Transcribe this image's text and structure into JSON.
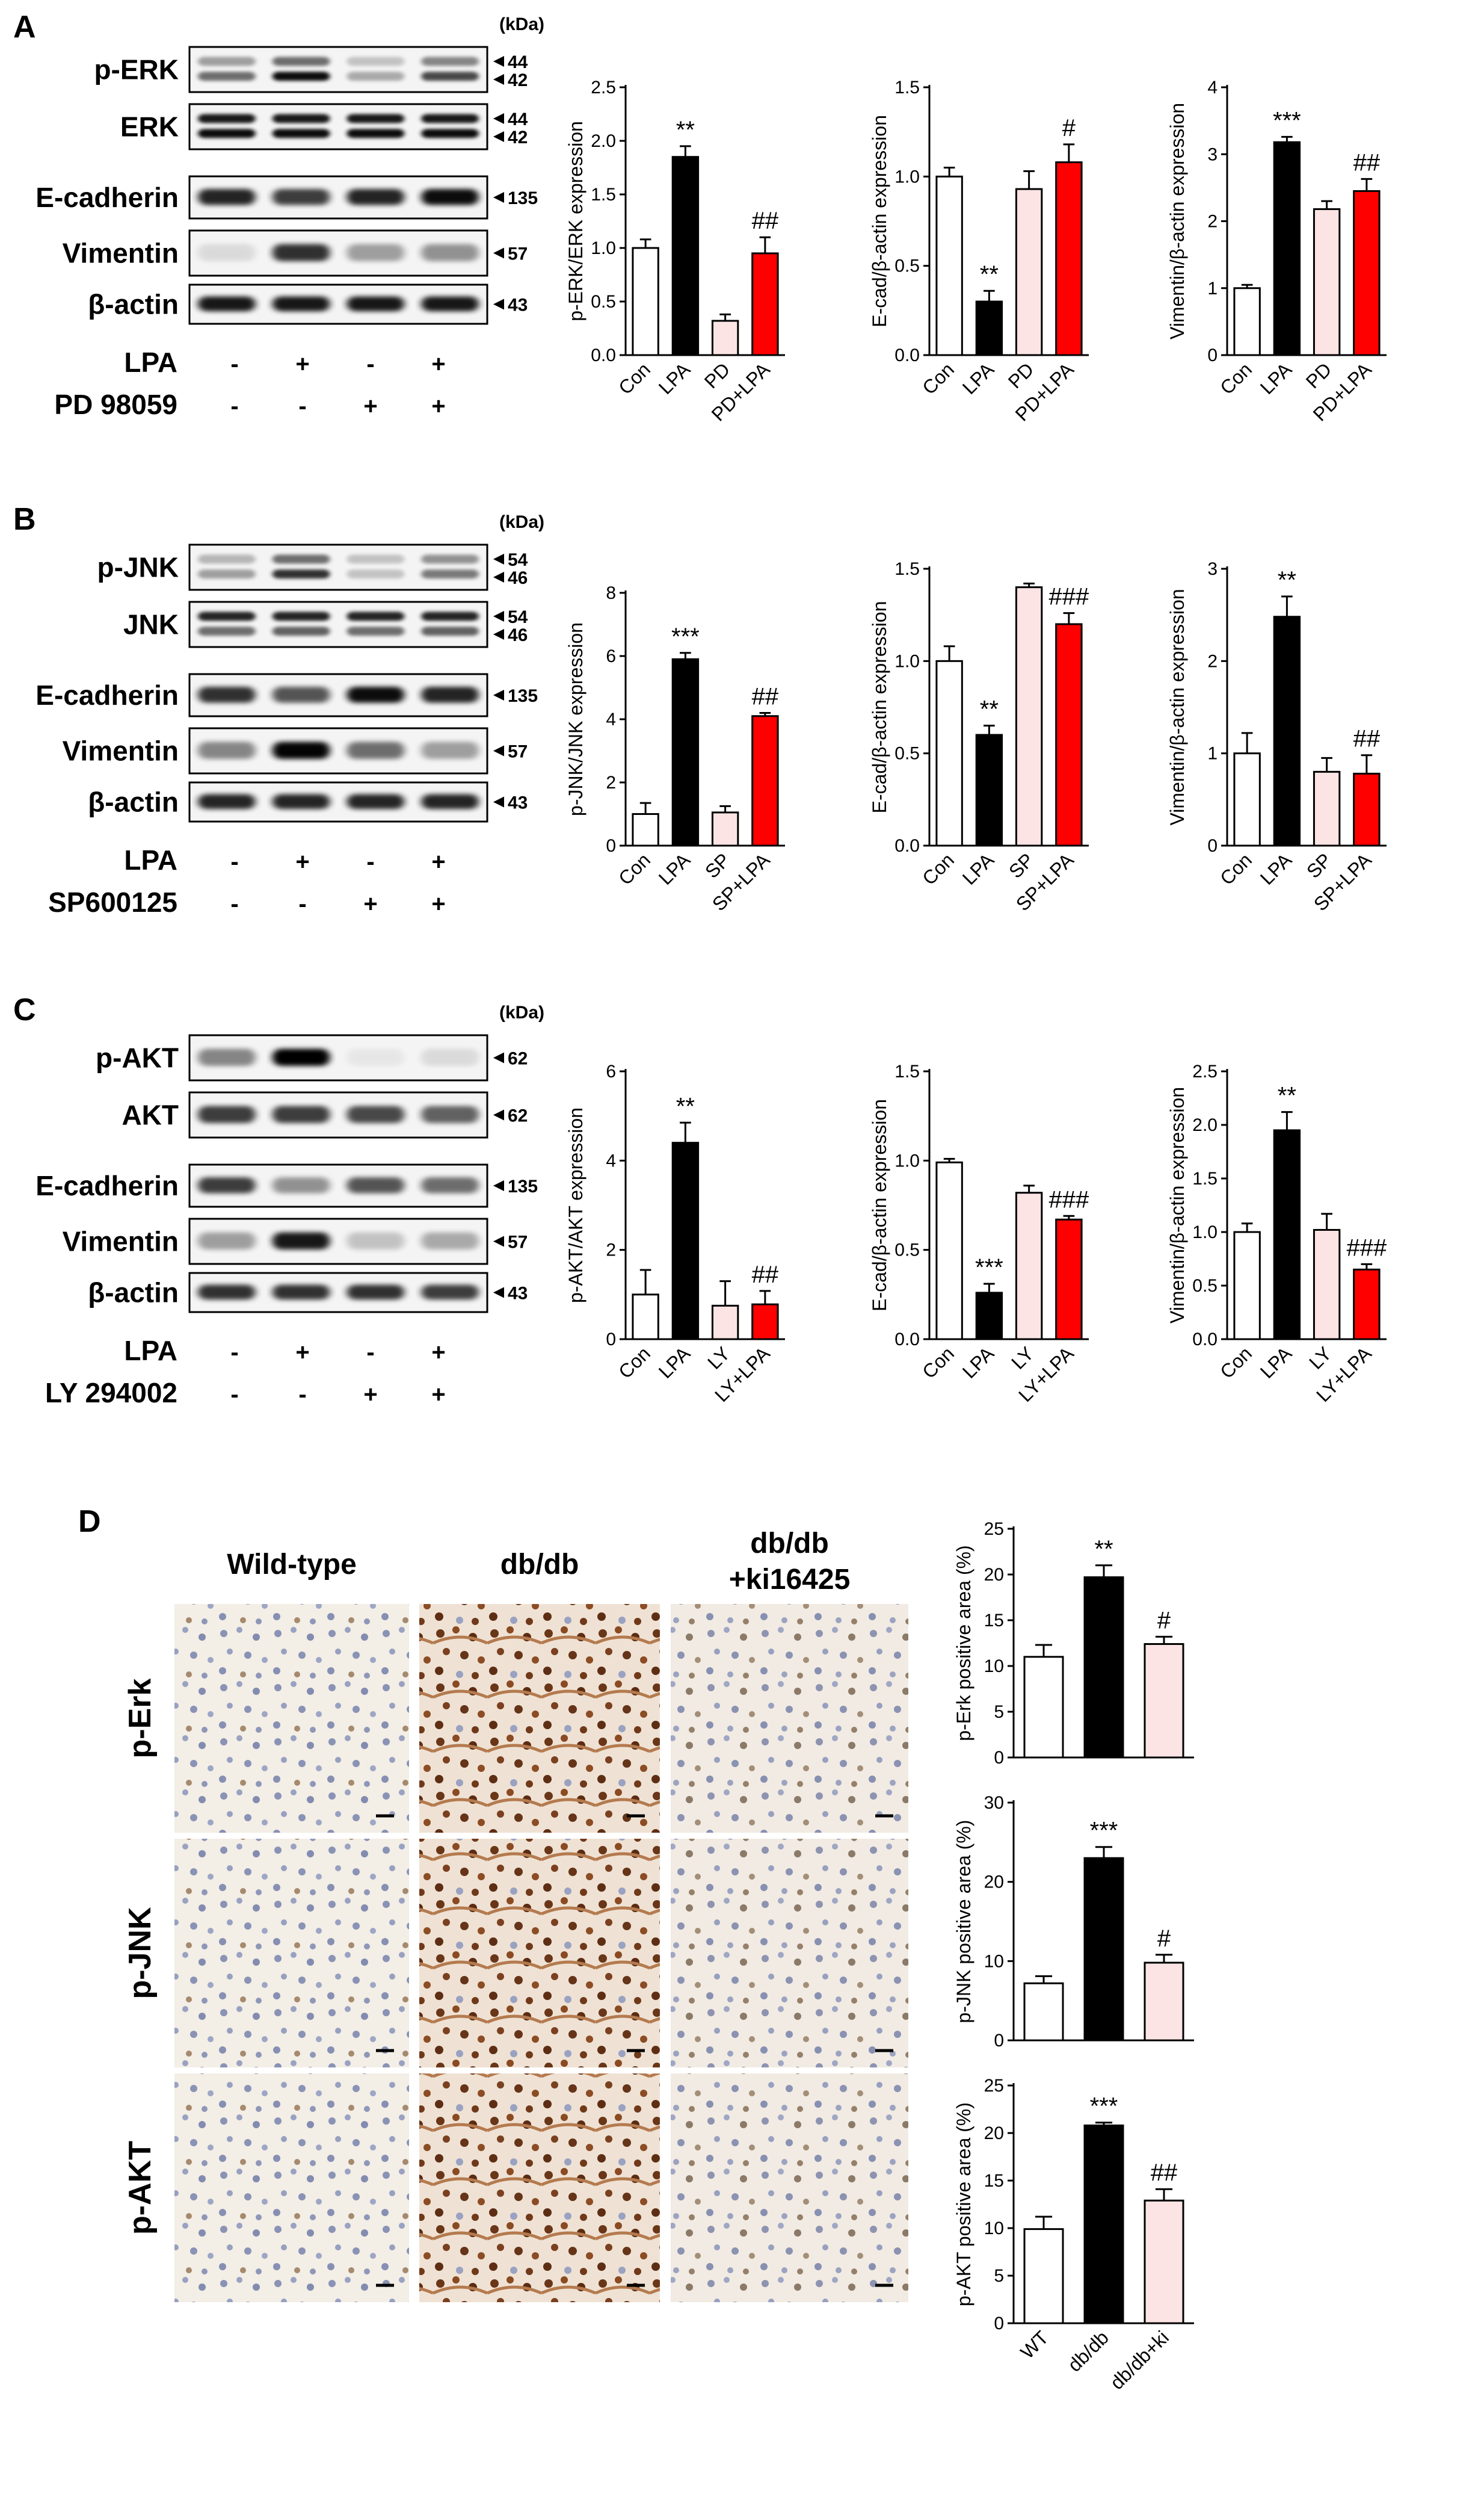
{
  "panels": [
    "A",
    "B",
    "C",
    "D"
  ],
  "kda_label": "(kDa)",
  "colors": {
    "con": "#ffffff",
    "lpa": "#000000",
    "inhibitor": "#fce4e4",
    "combo": "#ff0000",
    "axis": "#000000"
  },
  "blots": [
    {
      "panel": "A",
      "rows": [
        {
          "label": "p-ERK",
          "markers": [
            "44",
            "42"
          ]
        },
        {
          "label": "ERK",
          "markers": [
            "44",
            "42"
          ]
        },
        {
          "label": "E-cadherin",
          "markers": [
            "135"
          ]
        },
        {
          "label": "Vimentin",
          "markers": [
            "57"
          ]
        },
        {
          "label": "β-actin",
          "markers": [
            "43"
          ]
        }
      ],
      "treatments": [
        {
          "label": "LPA",
          "signs": [
            "-",
            "+",
            "-",
            "+"
          ]
        },
        {
          "label": "PD 98059",
          "signs": [
            "-",
            "-",
            "+",
            "+"
          ]
        }
      ]
    },
    {
      "panel": "B",
      "rows": [
        {
          "label": "p-JNK",
          "markers": [
            "54",
            "46"
          ]
        },
        {
          "label": "JNK",
          "markers": [
            "54",
            "46"
          ]
        },
        {
          "label": "E-cadherin",
          "markers": [
            "135"
          ]
        },
        {
          "label": "Vimentin",
          "markers": [
            "57"
          ]
        },
        {
          "label": "β-actin",
          "markers": [
            "43"
          ]
        }
      ],
      "treatments": [
        {
          "label": "LPA",
          "signs": [
            "-",
            "+",
            "-",
            "+"
          ]
        },
        {
          "label": "SP600125",
          "signs": [
            "-",
            "-",
            "+",
            "+"
          ]
        }
      ]
    },
    {
      "panel": "C",
      "rows": [
        {
          "label": "p-AKT",
          "markers": [
            "62"
          ]
        },
        {
          "label": "AKT",
          "markers": [
            "62"
          ]
        },
        {
          "label": "E-cadherin",
          "markers": [
            "135"
          ]
        },
        {
          "label": "Vimentin",
          "markers": [
            "57"
          ]
        },
        {
          "label": "β-actin",
          "markers": [
            "43"
          ]
        }
      ],
      "treatments": [
        {
          "label": "LPA",
          "signs": [
            "-",
            "+",
            "-",
            "+"
          ]
        },
        {
          "label": "LY 294002",
          "signs": [
            "-",
            "-",
            "+",
            "+"
          ]
        }
      ]
    }
  ],
  "histology": {
    "columns": [
      "Wild-type",
      "db/db",
      "db/db",
      "+ki16425"
    ],
    "rows": [
      "p-Erk",
      "p-JNK",
      "p-AKT"
    ]
  },
  "chart_data": [
    {
      "panel": "A",
      "type": "bar",
      "categories": [
        "Con",
        "LPA",
        "PD",
        "PD+LPA"
      ],
      "values": [
        1.0,
        1.85,
        0.32,
        0.95
      ],
      "errors": [
        0.08,
        0.1,
        0.06,
        0.15
      ],
      "ylabel": "p-ERK/ERK expression",
      "ylim": [
        0,
        2.5
      ],
      "ticks": [
        "0.0",
        "0.5",
        "1.0",
        "1.5",
        "2.0",
        "2.5"
      ],
      "annotations": [
        "",
        "**",
        "",
        "##"
      ],
      "fills": [
        "con",
        "lpa",
        "inhibitor",
        "combo"
      ]
    },
    {
      "panel": "A",
      "type": "bar",
      "categories": [
        "Con",
        "LPA",
        "PD",
        "PD+LPA"
      ],
      "values": [
        1.0,
        0.3,
        0.93,
        1.08
      ],
      "errors": [
        0.05,
        0.06,
        0.1,
        0.1
      ],
      "ylabel": "E-cad/β-actin expression",
      "ylim": [
        0,
        1.5
      ],
      "ticks": [
        "0.0",
        "0.5",
        "1.0",
        "1.5"
      ],
      "annotations": [
        "",
        "**",
        "",
        "#"
      ],
      "fills": [
        "con",
        "lpa",
        "inhibitor",
        "combo"
      ]
    },
    {
      "panel": "A",
      "type": "bar",
      "categories": [
        "Con",
        "LPA",
        "PD",
        "PD+LPA"
      ],
      "values": [
        1.0,
        3.18,
        2.18,
        2.45
      ],
      "errors": [
        0.05,
        0.08,
        0.12,
        0.18
      ],
      "ylabel": "Vimentin/β-actin expression",
      "ylim": [
        0,
        4
      ],
      "ticks": [
        "0",
        "1",
        "2",
        "3",
        "4"
      ],
      "annotations": [
        "",
        "***",
        "",
        "##"
      ],
      "fills": [
        "con",
        "lpa",
        "inhibitor",
        "combo"
      ]
    },
    {
      "panel": "B",
      "type": "bar",
      "categories": [
        "Con",
        "LPA",
        "SP",
        "SP+LPA"
      ],
      "values": [
        1.0,
        5.9,
        1.05,
        4.1
      ],
      "errors": [
        0.35,
        0.2,
        0.2,
        0.1
      ],
      "ylabel": "p-JNK/JNK expression",
      "ylim": [
        0,
        8
      ],
      "ticks": [
        "0",
        "2",
        "4",
        "6",
        "8"
      ],
      "annotations": [
        "",
        "***",
        "",
        "##"
      ],
      "fills": [
        "con",
        "lpa",
        "inhibitor",
        "combo"
      ]
    },
    {
      "panel": "B",
      "type": "bar",
      "categories": [
        "Con",
        "LPA",
        "SP",
        "SP+LPA"
      ],
      "values": [
        1.0,
        0.6,
        1.4,
        1.2
      ],
      "errors": [
        0.08,
        0.05,
        0.02,
        0.06
      ],
      "ylabel": "E-cad/β-actin expression",
      "ylim": [
        0,
        1.5
      ],
      "ticks": [
        "0.0",
        "0.5",
        "1.0",
        "1.5"
      ],
      "annotations": [
        "",
        "**",
        "",
        "###"
      ],
      "fills": [
        "con",
        "lpa",
        "inhibitor",
        "combo"
      ]
    },
    {
      "panel": "B",
      "type": "bar",
      "categories": [
        "Con",
        "LPA",
        "SP",
        "SP+LPA"
      ],
      "values": [
        1.0,
        2.48,
        0.8,
        0.78
      ],
      "errors": [
        0.22,
        0.22,
        0.15,
        0.2
      ],
      "ylabel": "Vimentin/β-actin expression",
      "ylim": [
        0,
        3
      ],
      "ticks": [
        "0",
        "1",
        "2",
        "3"
      ],
      "annotations": [
        "",
        "**",
        "",
        "##"
      ],
      "fills": [
        "con",
        "lpa",
        "inhibitor",
        "combo"
      ]
    },
    {
      "panel": "C",
      "type": "bar",
      "categories": [
        "Con",
        "LPA",
        "LY",
        "LY+LPA"
      ],
      "values": [
        1.0,
        4.4,
        0.75,
        0.78
      ],
      "errors": [
        0.55,
        0.45,
        0.55,
        0.3
      ],
      "ylabel": "p-AKT/AKT expression",
      "ylim": [
        0,
        6
      ],
      "ticks": [
        "0",
        "2",
        "4",
        "6"
      ],
      "annotations": [
        "",
        "**",
        "",
        "##"
      ],
      "fills": [
        "con",
        "lpa",
        "inhibitor",
        "combo"
      ]
    },
    {
      "panel": "C",
      "type": "bar",
      "categories": [
        "Con",
        "LPA",
        "LY",
        "LY+LPA"
      ],
      "values": [
        0.99,
        0.26,
        0.82,
        0.67
      ],
      "errors": [
        0.02,
        0.05,
        0.04,
        0.02
      ],
      "ylabel": "E-cad/β-actin expression",
      "ylim": [
        0,
        1.5
      ],
      "ticks": [
        "0.0",
        "0.5",
        "1.0",
        "1.5"
      ],
      "annotations": [
        "",
        "***",
        "",
        "###"
      ],
      "fills": [
        "con",
        "lpa",
        "inhibitor",
        "combo"
      ]
    },
    {
      "panel": "C",
      "type": "bar",
      "categories": [
        "Con",
        "LPA",
        "LY",
        "LY+LPA"
      ],
      "values": [
        1.0,
        1.95,
        1.02,
        0.65
      ],
      "errors": [
        0.08,
        0.17,
        0.15,
        0.05
      ],
      "ylabel": "Vimentin/β-actin expression",
      "ylim": [
        0,
        2.5
      ],
      "ticks": [
        "0.0",
        "0.5",
        "1.0",
        "1.5",
        "2.0",
        "2.5"
      ],
      "annotations": [
        "",
        "**",
        "",
        "###"
      ],
      "fills": [
        "con",
        "lpa",
        "inhibitor",
        "combo"
      ]
    },
    {
      "panel": "D",
      "type": "bar",
      "categories": [
        "",
        "",
        ""
      ],
      "values": [
        11.0,
        19.7,
        12.4
      ],
      "errors": [
        1.3,
        1.3,
        0.8
      ],
      "ylabel": "p-Erk positive area (%)",
      "ylim": [
        0,
        25
      ],
      "ticks": [
        "0",
        "5",
        "10",
        "15",
        "20",
        "25"
      ],
      "annotations": [
        "",
        "**",
        "#"
      ],
      "fills": [
        "con",
        "lpa",
        "inhibitor"
      ]
    },
    {
      "panel": "D",
      "type": "bar",
      "categories": [
        "",
        "",
        ""
      ],
      "values": [
        7.2,
        23.0,
        9.8
      ],
      "errors": [
        0.9,
        1.4,
        1.0
      ],
      "ylabel": "p-JNK positive area (%)",
      "ylim": [
        0,
        30
      ],
      "ticks": [
        "0",
        "10",
        "20",
        "30"
      ],
      "annotations": [
        "",
        "***",
        "#"
      ],
      "fills": [
        "con",
        "lpa",
        "inhibitor"
      ]
    },
    {
      "panel": "D",
      "type": "bar",
      "categories": [
        "WT",
        "db/db",
        "db/db+ki"
      ],
      "values": [
        9.9,
        20.8,
        12.9
      ],
      "errors": [
        1.3,
        0.3,
        1.2
      ],
      "ylabel": "p-AKT positive area (%)",
      "ylim": [
        0,
        25
      ],
      "ticks": [
        "0",
        "5",
        "10",
        "15",
        "20",
        "25"
      ],
      "annotations": [
        "",
        "***",
        "##"
      ],
      "fills": [
        "con",
        "lpa",
        "inhibitor"
      ]
    }
  ]
}
